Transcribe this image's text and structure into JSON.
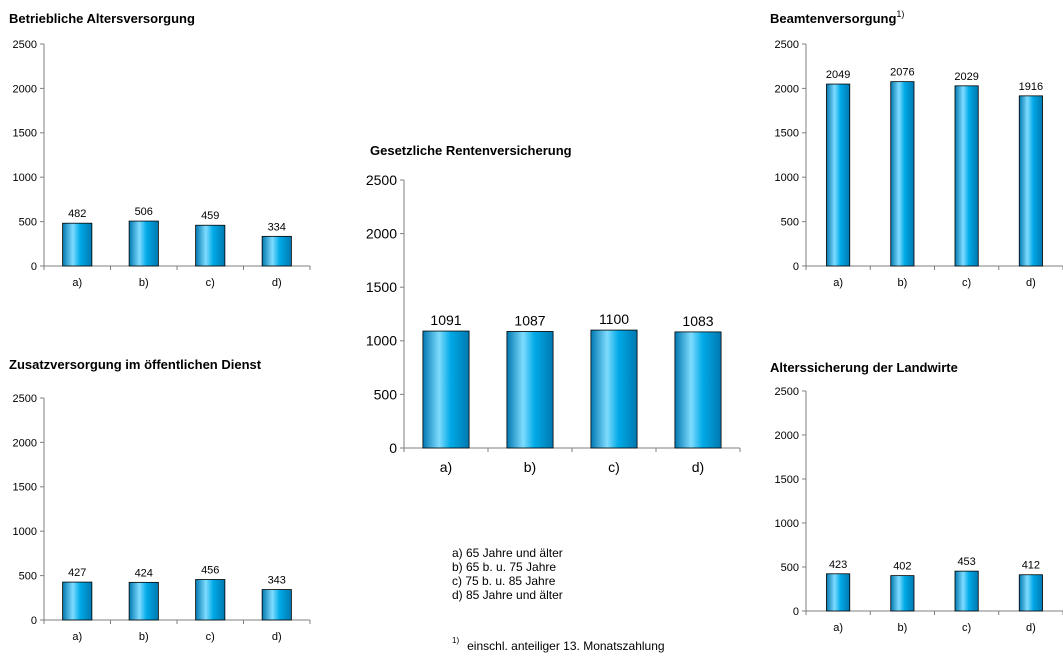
{
  "categories": [
    "a)",
    "b)",
    "c)",
    "d)"
  ],
  "legend": [
    "a)  65 Jahre und älter",
    "b)  65 b. u. 75 Jahre",
    "c)  75 b. u. 85 Jahre",
    "d)  85 Jahre und älter"
  ],
  "footnote": {
    "marker": "1)",
    "text": "einschl. anteiliger 13. Monatszahlung"
  },
  "colors": {
    "bar_light": "#7fdcff",
    "bar_mid": "#00aae8",
    "bar_dark": "#0078b0",
    "axis": "#7f7f7f"
  },
  "chart_data": [
    {
      "id": "bav",
      "type": "bar",
      "title": "Betriebliche Altersversorgung",
      "title_sup": "",
      "categories": [
        "a)",
        "b)",
        "c)",
        "d)"
      ],
      "values": [
        482,
        506,
        459,
        334
      ],
      "ylim": [
        0,
        2500
      ],
      "yticks": [
        0,
        500,
        1000,
        1500,
        2000,
        2500
      ],
      "grid": false,
      "xlabel": "",
      "ylabel": ""
    },
    {
      "id": "zod",
      "type": "bar",
      "title": "Zusatzversorgung im öffentlichen Dienst",
      "title_sup": "",
      "categories": [
        "a)",
        "b)",
        "c)",
        "d)"
      ],
      "values": [
        427,
        424,
        456,
        343
      ],
      "ylim": [
        0,
        2500
      ],
      "yticks": [
        0,
        500,
        1000,
        1500,
        2000,
        2500
      ],
      "grid": false,
      "xlabel": "",
      "ylabel": ""
    },
    {
      "id": "grv",
      "type": "bar",
      "title": "Gesetzliche Rentenversicherung",
      "title_sup": "",
      "categories": [
        "a)",
        "b)",
        "c)",
        "d)"
      ],
      "values": [
        1091,
        1087,
        1100,
        1083
      ],
      "ylim": [
        0,
        2500
      ],
      "yticks": [
        0,
        500,
        1000,
        1500,
        2000,
        2500
      ],
      "grid": false,
      "xlabel": "",
      "ylabel": ""
    },
    {
      "id": "bv",
      "type": "bar",
      "title": "Beamtenversorgung",
      "title_sup": "1)",
      "categories": [
        "a)",
        "b)",
        "c)",
        "d)"
      ],
      "values": [
        2049,
        2076,
        2029,
        1916
      ],
      "ylim": [
        0,
        2500
      ],
      "yticks": [
        0,
        500,
        1000,
        1500,
        2000,
        2500
      ],
      "grid": false,
      "xlabel": "",
      "ylabel": ""
    },
    {
      "id": "adl",
      "type": "bar",
      "title": "Alterssicherung der Landwirte",
      "title_sup": "",
      "categories": [
        "a)",
        "b)",
        "c)",
        "d)"
      ],
      "values": [
        423,
        402,
        453,
        412
      ],
      "ylim": [
        0,
        2500
      ],
      "yticks": [
        0,
        500,
        1000,
        1500,
        2000,
        2500
      ],
      "grid": false,
      "xlabel": "",
      "ylabel": ""
    }
  ]
}
